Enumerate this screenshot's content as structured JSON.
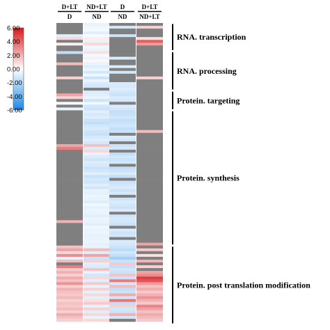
{
  "chart_data": {
    "type": "heatmap",
    "title": "",
    "color_scale": {
      "min": -6,
      "max": 6,
      "ticks": [
        "6.00",
        "4.00",
        "2.00",
        "0.00",
        "-2.00",
        "-4.00",
        "-6.00"
      ],
      "tick_values": [
        6,
        4,
        2,
        0,
        -2,
        -4,
        -6
      ],
      "colors": {
        "low": "#1e88e5",
        "mid": "#ffffff",
        "high": "#d7191c",
        "missing": "#7f7f7f"
      }
    },
    "columns": [
      {
        "top": "D+LT",
        "bottom": "D"
      },
      {
        "top": "ND+LT",
        "bottom": "ND"
      },
      {
        "top": "D",
        "bottom": "ND"
      },
      {
        "top": "D+LT",
        "bottom": "ND+LT"
      }
    ],
    "row_count": 107,
    "groups": [
      {
        "label": "RNA. transcription",
        "start_row": 0,
        "end_row": 9
      },
      {
        "label": "RNA. processing",
        "start_row": 10,
        "end_row": 23
      },
      {
        "label": "Protein. targeting",
        "start_row": 24,
        "end_row": 30
      },
      {
        "label": "Protein. synthesis",
        "start_row": 31,
        "end_row": 78
      },
      {
        "label": "Protein. post translation modification",
        "start_row": 79,
        "end_row": 106
      }
    ],
    "values": [
      [
        null,
        -0.6,
        null,
        null
      ],
      [
        null,
        -0.4,
        -1.2,
        1.2
      ],
      [
        null,
        -0.3,
        null,
        null
      ],
      [
        null,
        -0.8,
        null,
        null
      ],
      [
        -0.8,
        -0.2,
        -1.4,
        null
      ],
      [
        1.0,
        0.5,
        null,
        0.8
      ],
      [
        null,
        -0.6,
        null,
        4.2
      ],
      [
        0.4,
        1.0,
        null,
        2.6
      ],
      [
        null,
        -0.4,
        null,
        null
      ],
      [
        null,
        -0.6,
        null,
        null
      ],
      [
        -1.6,
        0.8,
        null,
        null
      ],
      [
        null,
        -0.3,
        null,
        null
      ],
      [
        null,
        -0.5,
        -1.0,
        null
      ],
      [
        null,
        0.2,
        null,
        null
      ],
      [
        1.8,
        -0.6,
        null,
        null
      ],
      [
        null,
        -0.9,
        -1.0,
        null
      ],
      [
        null,
        -0.5,
        null,
        null
      ],
      [
        null,
        -1.2,
        -1.2,
        null
      ],
      [
        null,
        -0.4,
        null,
        null
      ],
      [
        1.2,
        -1.4,
        null,
        1.2
      ],
      [
        null,
        -0.5,
        null,
        null
      ],
      [
        null,
        -1.0,
        -1.0,
        null
      ],
      [
        null,
        -1.2,
        -1.1,
        null
      ],
      [
        null,
        null,
        -0.9,
        null
      ],
      [
        null,
        -1.0,
        -1.2,
        null
      ],
      [
        2.4,
        -0.8,
        -1.4,
        null
      ],
      [
        1.2,
        -0.6,
        -1.0,
        null
      ],
      [
        null,
        -1.3,
        -1.2,
        null
      ],
      [
        -0.3,
        -0.4,
        null,
        null
      ],
      [
        null,
        -1.2,
        -1.0,
        null
      ],
      [
        -0.6,
        -1.4,
        -1.2,
        null
      ],
      [
        null,
        -0.8,
        -1.6,
        null
      ],
      [
        null,
        -1.1,
        -1.5,
        null
      ],
      [
        null,
        -0.9,
        -1.2,
        null
      ],
      [
        null,
        -1.4,
        -1.6,
        null
      ],
      [
        null,
        -1.6,
        -1.4,
        null
      ],
      [
        null,
        -1.2,
        -1.2,
        null
      ],
      [
        null,
        -1.0,
        -1.6,
        null
      ],
      [
        null,
        -1.3,
        -1.4,
        1.8
      ],
      [
        null,
        -1.5,
        null,
        null
      ],
      [
        null,
        -1.1,
        -1.0,
        null
      ],
      [
        null,
        -0.8,
        -1.2,
        null
      ],
      [
        null,
        -1.2,
        null,
        null
      ],
      [
        2.4,
        1.6,
        -1.4,
        null
      ],
      [
        3.4,
        -1.0,
        -1.2,
        null
      ],
      [
        null,
        1.0,
        null,
        null
      ],
      [
        null,
        -0.6,
        -1.6,
        null
      ],
      [
        null,
        -1.0,
        -1.2,
        null
      ],
      [
        null,
        -1.3,
        -1.4,
        null
      ],
      [
        null,
        -0.9,
        -1.2,
        null
      ],
      [
        null,
        -1.1,
        null,
        null
      ],
      [
        null,
        -1.4,
        -1.6,
        null
      ],
      [
        null,
        -1.2,
        -1.4,
        null
      ],
      [
        null,
        -0.8,
        -1.0,
        null
      ],
      [
        null,
        -1.5,
        -1.6,
        null
      ],
      [
        null,
        -1.1,
        null,
        null
      ],
      [
        null,
        -1.3,
        -1.4,
        null
      ],
      [
        null,
        -0.8,
        -1.2,
        null
      ],
      [
        null,
        -1.2,
        -1.0,
        null
      ],
      [
        null,
        -0.6,
        -1.4,
        null
      ],
      [
        null,
        -0.7,
        -1.1,
        null
      ],
      [
        null,
        -0.5,
        null,
        null
      ],
      [
        null,
        -0.6,
        -1.3,
        null
      ],
      [
        null,
        -0.9,
        -1.0,
        null
      ],
      [
        null,
        -0.4,
        -1.2,
        null
      ],
      [
        null,
        -0.7,
        -1.4,
        null
      ],
      [
        null,
        -0.5,
        -1.0,
        null
      ],
      [
        null,
        -0.6,
        null,
        null
      ],
      [
        null,
        -0.8,
        -1.3,
        null
      ],
      [
        null,
        -0.5,
        -1.1,
        null
      ],
      [
        2.0,
        -0.6,
        -1.2,
        null
      ],
      [
        null,
        -0.8,
        -1.4,
        null
      ],
      [
        null,
        -0.4,
        null,
        null
      ],
      [
        null,
        -0.6,
        -1.0,
        null
      ],
      [
        null,
        -0.5,
        -1.3,
        null
      ],
      [
        null,
        -0.7,
        -1.2,
        null
      ],
      [
        null,
        -0.6,
        null,
        null
      ],
      [
        null,
        -0.5,
        -1.0,
        null
      ],
      [
        null,
        -0.7,
        -1.1,
        2.4
      ],
      [
        1.6,
        -0.6,
        -1.4,
        null
      ],
      [
        2.4,
        1.8,
        -1.8,
        1.4
      ],
      [
        1.0,
        -0.8,
        -1.2,
        null
      ],
      [
        3.0,
        2.4,
        -1.6,
        0.8
      ],
      [
        -0.6,
        -1.4,
        -2.4,
        null
      ],
      [
        1.8,
        1.2,
        -1.4,
        2.0
      ],
      [
        null,
        -0.8,
        1.4,
        null
      ],
      [
        3.4,
        -1.0,
        -1.6,
        1.2
      ],
      [
        1.4,
        1.6,
        -1.2,
        null
      ],
      [
        2.0,
        -0.6,
        -1.4,
        2.4
      ],
      [
        1.2,
        -1.2,
        1.6,
        3.0
      ],
      [
        2.2,
        1.0,
        -1.4,
        5.0
      ],
      [
        1.6,
        -0.8,
        3.4,
        4.4
      ],
      [
        2.8,
        1.4,
        -1.2,
        2.6
      ],
      [
        1.2,
        -0.6,
        1.8,
        1.6
      ],
      [
        2.0,
        1.2,
        -1.6,
        2.2
      ],
      [
        1.6,
        -0.7,
        -1.4,
        1.4
      ],
      [
        1.4,
        1.0,
        2.2,
        2.0
      ],
      [
        1.8,
        -0.8,
        -1.2,
        2.8
      ],
      [
        1.2,
        0.8,
        3.6,
        2.0
      ],
      [
        1.6,
        1.4,
        -1.6,
        1.4
      ],
      [
        1.4,
        -0.6,
        1.2,
        3.2
      ],
      [
        1.8,
        1.2,
        -1.2,
        2.4
      ],
      [
        1.2,
        -0.8,
        -1.4,
        1.6
      ],
      [
        2.2,
        1.0,
        2.0,
        2.2
      ],
      [
        1.6,
        -0.6,
        -1.2,
        1.8
      ],
      [
        1.2,
        1.0,
        null,
        1.4
      ]
    ]
  }
}
